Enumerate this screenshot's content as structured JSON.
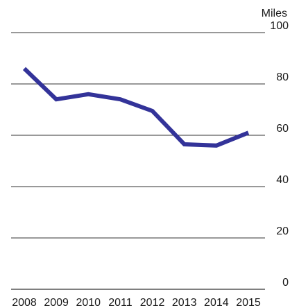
{
  "chart_data": {
    "type": "line",
    "title": "",
    "xlabel": "",
    "ylabel": "Miles",
    "x": [
      "2008",
      "2009",
      "2010",
      "2011",
      "2012",
      "2013",
      "2014",
      "2015"
    ],
    "series": [
      {
        "values": [
          86,
          74,
          76,
          74,
          69.5,
          56.5,
          56,
          61
        ],
        "color": "#333399"
      }
    ],
    "ylim": [
      0,
      100
    ],
    "yticks": [
      "0",
      "20",
      "40",
      "60",
      "80",
      "100"
    ],
    "grid": "horizontal",
    "legend": "none"
  }
}
